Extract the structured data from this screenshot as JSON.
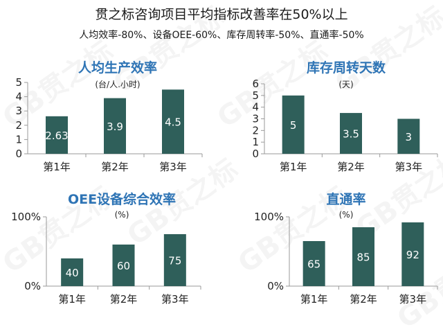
{
  "header": {
    "title": "贯之标咨询项目平均指标改善率在50%以上",
    "subtitle": "人均效率-80%、设备OEE-60%、库存周转率-50%、直通率-50%"
  },
  "watermark": "GB贯之标",
  "colors": {
    "bar": "#2f5f5a",
    "title": "#2e74b5"
  },
  "chart_data": [
    {
      "type": "bar",
      "title": "人均生产效率",
      "unit": "(台/人.小时)",
      "categories": [
        "第1年",
        "第2年",
        "第3年"
      ],
      "values": [
        2.63,
        3.9,
        4.5
      ],
      "value_labels": [
        "2.63",
        "3.9",
        "4.5"
      ],
      "ylim": [
        0,
        5
      ],
      "yticks": [
        "0",
        "1",
        "2",
        "3",
        "4",
        "5"
      ]
    },
    {
      "type": "bar",
      "title": "库存周转天数",
      "unit": "(天)",
      "categories": [
        "第1年",
        "第2年",
        "第3年"
      ],
      "values": [
        5,
        3.5,
        3
      ],
      "value_labels": [
        "5",
        "3.5",
        "3"
      ],
      "ylim": [
        0,
        6
      ],
      "yticks": [
        "0",
        "1",
        "2",
        "3",
        "4",
        "5",
        "6"
      ]
    },
    {
      "type": "bar",
      "title": "OEE设备综合效率",
      "unit": "(%)",
      "categories": [
        "第1年",
        "第2年",
        "第3年"
      ],
      "values": [
        40,
        60,
        75
      ],
      "value_labels": [
        "40",
        "60",
        "75"
      ],
      "ylim": [
        0,
        100
      ],
      "yticks": [
        "0%",
        "100%"
      ]
    },
    {
      "type": "bar",
      "title": "直通率",
      "unit": "(%)",
      "categories": [
        "第1年",
        "第2年",
        "第3年"
      ],
      "values": [
        65,
        85,
        92
      ],
      "value_labels": [
        "65",
        "85",
        "92"
      ],
      "ylim": [
        0,
        100
      ],
      "yticks": [
        "0%",
        "100%"
      ]
    }
  ]
}
